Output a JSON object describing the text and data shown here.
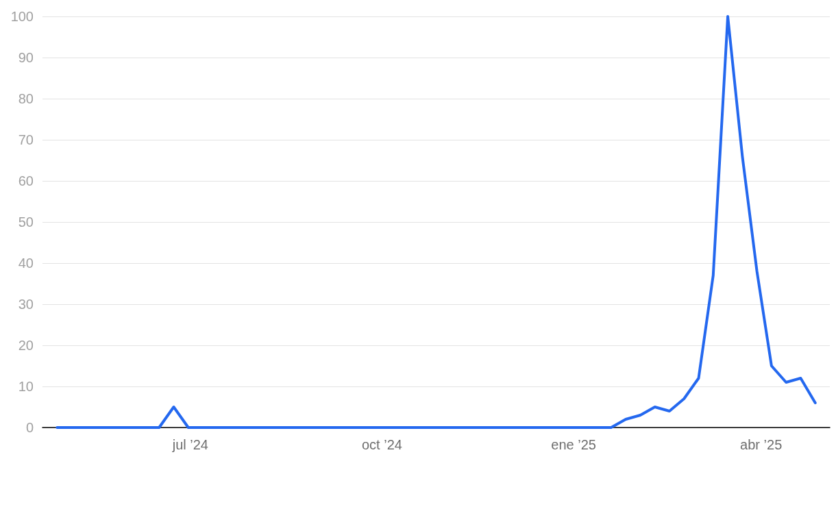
{
  "chart_data": {
    "type": "line",
    "x": [
      "2024-04-28",
      "2024-05-05",
      "2024-05-12",
      "2024-05-19",
      "2024-05-26",
      "2024-06-02",
      "2024-06-09",
      "2024-06-16",
      "2024-06-23",
      "2024-06-30",
      "2024-07-07",
      "2024-07-14",
      "2024-07-21",
      "2024-07-28",
      "2024-08-04",
      "2024-08-11",
      "2024-08-18",
      "2024-08-25",
      "2024-09-01",
      "2024-09-08",
      "2024-09-15",
      "2024-09-22",
      "2024-09-29",
      "2024-10-06",
      "2024-10-13",
      "2024-10-20",
      "2024-10-27",
      "2024-11-03",
      "2024-11-10",
      "2024-11-17",
      "2024-11-24",
      "2024-12-01",
      "2024-12-08",
      "2024-12-15",
      "2024-12-22",
      "2024-12-29",
      "2025-01-05",
      "2025-01-12",
      "2025-01-19",
      "2025-01-26",
      "2025-02-02",
      "2025-02-09",
      "2025-02-16",
      "2025-02-23",
      "2025-03-02",
      "2025-03-09",
      "2025-03-16",
      "2025-03-23",
      "2025-03-30",
      "2025-04-06",
      "2025-04-13",
      "2025-04-20",
      "2025-04-27"
    ],
    "series": [
      {
        "color": "#2468ef",
        "values": [
          0,
          0,
          0,
          0,
          0,
          0,
          0,
          0,
          5,
          0,
          0,
          0,
          0,
          0,
          0,
          0,
          0,
          0,
          0,
          0,
          0,
          0,
          0,
          0,
          0,
          0,
          0,
          0,
          0,
          0,
          0,
          0,
          0,
          0,
          0,
          0,
          0,
          0,
          0,
          2,
          3,
          5,
          4,
          7,
          12,
          37,
          100,
          66,
          38,
          15,
          11,
          12,
          6
        ]
      }
    ],
    "xlim": [
      "2024-04-21",
      "2025-05-04"
    ],
    "xticks": [
      {
        "value": "2024-07-01",
        "label": "jul ’24"
      },
      {
        "value": "2024-10-01",
        "label": "oct ’24"
      },
      {
        "value": "2025-01-01",
        "label": "ene ’25"
      },
      {
        "value": "2025-04-01",
        "label": "abr ’25"
      }
    ],
    "ylim": [
      0,
      100
    ],
    "yticks": [
      0,
      10,
      20,
      30,
      40,
      50,
      60,
      70,
      80,
      90,
      100
    ],
    "grid": "y",
    "marker": "none",
    "line_style": "solid"
  }
}
